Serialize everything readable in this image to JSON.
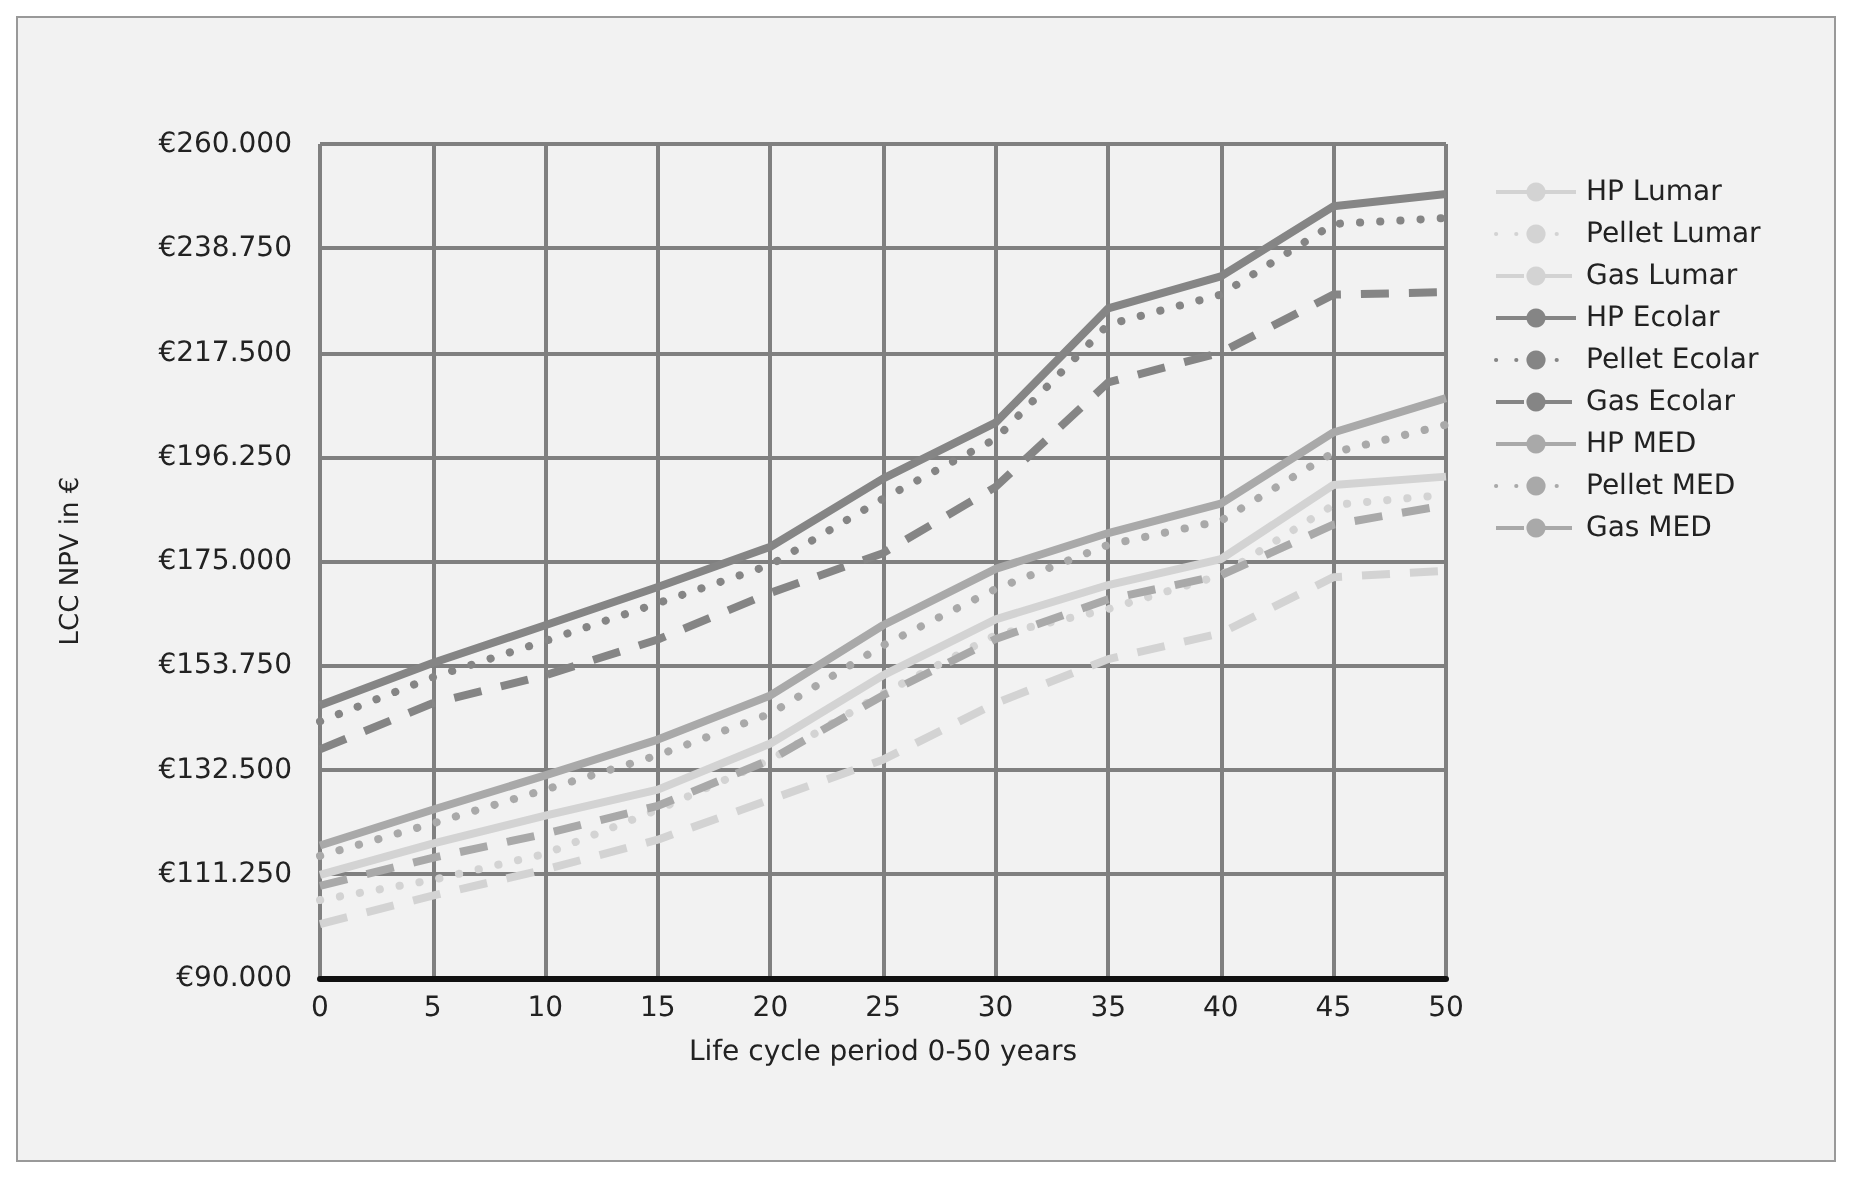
{
  "chart_data": {
    "type": "line",
    "xlabel": "Life cycle period 0-50 years",
    "ylabel": "LCC NPV in €",
    "x": [
      0,
      5,
      10,
      15,
      20,
      25,
      30,
      35,
      40,
      45,
      50
    ],
    "xlim": [
      0,
      50
    ],
    "xticks": [
      0,
      5,
      10,
      15,
      20,
      25,
      30,
      35,
      40,
      45,
      50
    ],
    "ylim": [
      90000,
      260000
    ],
    "yticks": [
      {
        "value": 90000,
        "label": "€90.000"
      },
      {
        "value": 111250,
        "label": "€111.250"
      },
      {
        "value": 132500,
        "label": "€132.500"
      },
      {
        "value": 153750,
        "label": "€153.750"
      },
      {
        "value": 175000,
        "label": "€175.000"
      },
      {
        "value": 196250,
        "label": "€196.250"
      },
      {
        "value": 217500,
        "label": "€217.500"
      },
      {
        "value": 238750,
        "label": "€238.750"
      },
      {
        "value": 260000,
        "label": "€260.000"
      }
    ],
    "grid": true,
    "legend": "right",
    "marker": "none",
    "series": [
      {
        "name": "HP Lumar",
        "color": "#d3d3d3",
        "line_style": "solid",
        "values": [
          111000,
          117400,
          123100,
          128400,
          137800,
          151700,
          163100,
          170100,
          175400,
          190500,
          192200
        ]
      },
      {
        "name": "Pellet Lumar",
        "color": "#d3d3d3",
        "line_style": "dotted",
        "values": [
          105900,
          110000,
          115300,
          124300,
          134500,
          148000,
          159900,
          165200,
          172100,
          186400,
          188500
        ]
      },
      {
        "name": "Gas Lumar",
        "color": "#d3d3d3",
        "line_style": "dashed",
        "values": [
          101000,
          106800,
          112100,
          118200,
          126400,
          134500,
          146000,
          155000,
          160300,
          171700,
          173000
        ]
      },
      {
        "name": "HP Ecolar",
        "color": "#858585",
        "line_style": "solid",
        "values": [
          145600,
          154200,
          161900,
          169700,
          177900,
          191800,
          203200,
          226500,
          233000,
          247300,
          249800
        ]
      },
      {
        "name": "Pellet Ecolar",
        "color": "#858585",
        "line_style": "dotted",
        "values": [
          142300,
          151300,
          158700,
          166400,
          174200,
          187700,
          199900,
          223200,
          229300,
          243700,
          244900
        ]
      },
      {
        "name": "Gas Ecolar",
        "color": "#858585",
        "line_style": "dashed",
        "values": [
          136600,
          146000,
          151700,
          159000,
          168500,
          176600,
          190100,
          211400,
          217500,
          229300,
          229800
        ]
      },
      {
        "name": "HP MED",
        "color": "#a9a9a9",
        "line_style": "solid",
        "values": [
          117000,
          124300,
          131300,
          138600,
          147600,
          161900,
          173400,
          180700,
          186700,
          201200,
          208200
        ]
      },
      {
        "name": "Pellet MED",
        "color": "#a9a9a9",
        "line_style": "dotted",
        "values": [
          114900,
          121500,
          128400,
          135400,
          143900,
          157800,
          169300,
          178300,
          183200,
          197100,
          202800
        ]
      },
      {
        "name": "Gas MED",
        "color": "#a9a9a9",
        "line_style": "dashed",
        "values": [
          108800,
          114500,
          119400,
          125100,
          134500,
          147600,
          159100,
          167200,
          172100,
          182400,
          186400
        ]
      }
    ]
  }
}
